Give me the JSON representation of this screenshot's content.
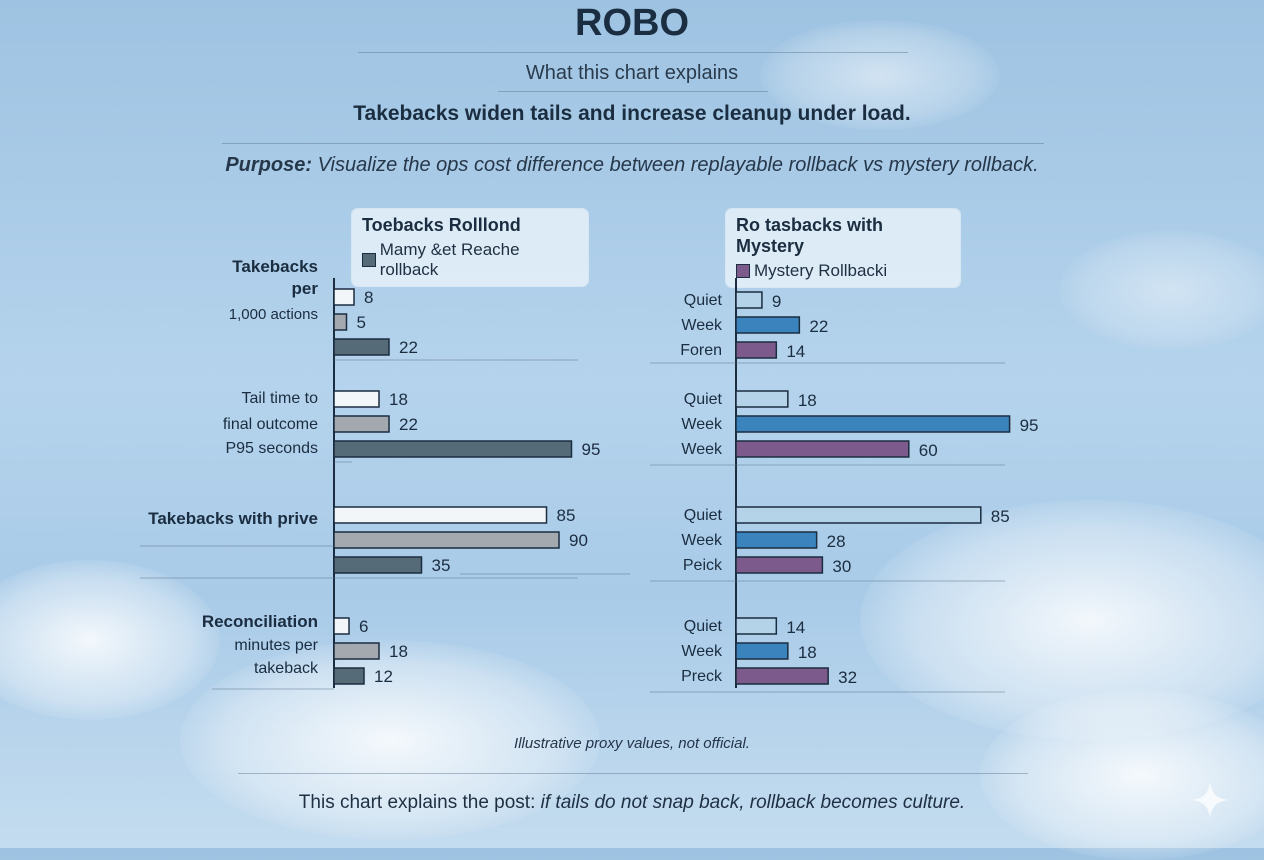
{
  "title": "ROBO",
  "subtitle": "What this chart explains",
  "headline": "Takebacks widen tails and increase cleanup under load.",
  "purpose_label": "Purpose:",
  "purpose_text": "Visualize the ops cost difference between replayable rollback vs mystery rollback.",
  "note": "Illustrative proxy values, not official.",
  "footer_plain": "This chart explains the post: ",
  "footer_italic": "if tails do not snap back, rollback becomes culture.",
  "colors": {
    "bar_white": "#f3f6f8",
    "bar_gray": "#a3a9ae",
    "bar_slate": "#566b78",
    "bar_lightblue": "#b4d2e8",
    "bar_blue": "#3a83bc",
    "bar_purple": "#7c5a8c",
    "outline": "#1b2d40"
  },
  "chart_data": [
    {
      "type": "bar",
      "orientation": "horizontal",
      "legend": {
        "title": "Toebacks Rolllond",
        "series": "Mamy &et Reache rollback"
      },
      "groups": [
        {
          "label_lines": [
            "Takebacks",
            "per",
            "1,000 actions"
          ],
          "values": [
            8,
            5,
            22
          ]
        },
        {
          "label_lines": [
            "Tail time to",
            "final outcome",
            "P95 seconds"
          ],
          "values": [
            18,
            22,
            95
          ]
        },
        {
          "label_lines": [
            "Takebacks with prive"
          ],
          "values": [
            85,
            90,
            35
          ]
        },
        {
          "label_lines": [
            "Reconciliation",
            "minutes per",
            "takeback"
          ],
          "values": [
            6,
            18,
            12
          ]
        }
      ]
    },
    {
      "type": "bar",
      "orientation": "horizontal",
      "legend": {
        "title": "Ro tasbacks with Mystery",
        "series": "Mystery Rollbacki"
      },
      "groups": [
        {
          "categories": [
            "Quiet",
            "Week",
            "Foren"
          ],
          "values": [
            9,
            22,
            14
          ]
        },
        {
          "categories": [
            "Quiet",
            "Week",
            "Week"
          ],
          "values": [
            18,
            95,
            60
          ]
        },
        {
          "categories": [
            "Quiet",
            "Week",
            "Peick"
          ],
          "values": [
            85,
            28,
            30
          ]
        },
        {
          "categories": [
            "Quiet",
            "Week",
            "Preck"
          ],
          "values": [
            14,
            18,
            32
          ]
        }
      ]
    }
  ]
}
